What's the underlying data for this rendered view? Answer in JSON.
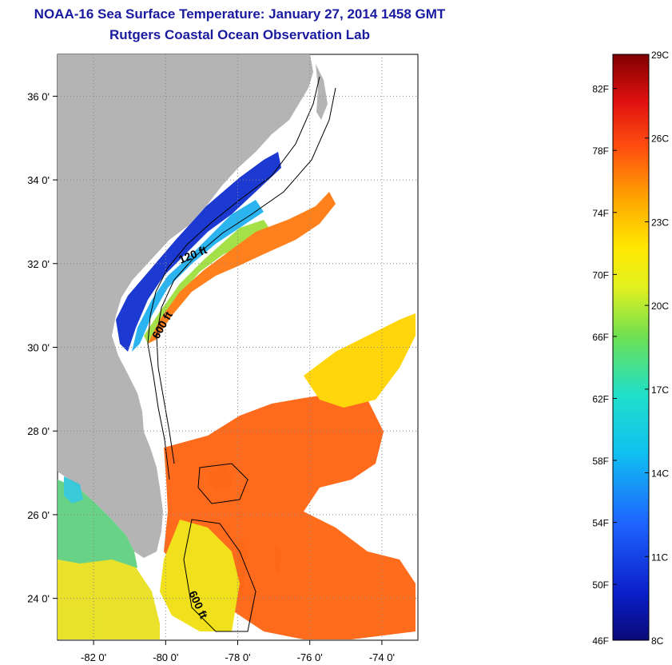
{
  "title": "NOAA-16 Sea Surface Temperature:  January 27, 2014 1458 GMT",
  "subtitle": "Rutgers Coastal Ocean Observation Lab",
  "map": {
    "lat_ticks": [
      "36 0'",
      "34 0'",
      "32 0'",
      "30 0'",
      "28 0'",
      "26 0'",
      "24 0'"
    ],
    "lat_values": [
      36,
      34,
      32,
      30,
      28,
      26,
      24
    ],
    "lon_ticks": [
      "-82 0'",
      "-80 0'",
      "-78 0'",
      "-76 0'",
      "-74 0'"
    ],
    "lon_values": [
      -82,
      -80,
      -78,
      -76,
      -74
    ],
    "lon_range": [
      -83,
      -73
    ],
    "lat_range": [
      23,
      37
    ],
    "contour_labels": [
      "120 ft",
      "600 ft",
      "600 ft"
    ],
    "land_color": "#b4b4b4",
    "grid": "dotted"
  },
  "colorbar": {
    "celsius_labels": [
      "29C",
      "26C",
      "23C",
      "20C",
      "17C",
      "14C",
      "11C",
      "8C"
    ],
    "celsius_values": [
      29,
      26,
      23,
      20,
      17,
      14,
      11,
      8
    ],
    "fahrenheit_labels": [
      "82F",
      "78F",
      "74F",
      "70F",
      "66F",
      "62F",
      "58F",
      "54F",
      "50F",
      "46F"
    ],
    "fahrenheit_values": [
      82,
      78,
      74,
      70,
      66,
      62,
      58,
      54,
      50,
      46
    ],
    "range_c": [
      8,
      29
    ]
  }
}
